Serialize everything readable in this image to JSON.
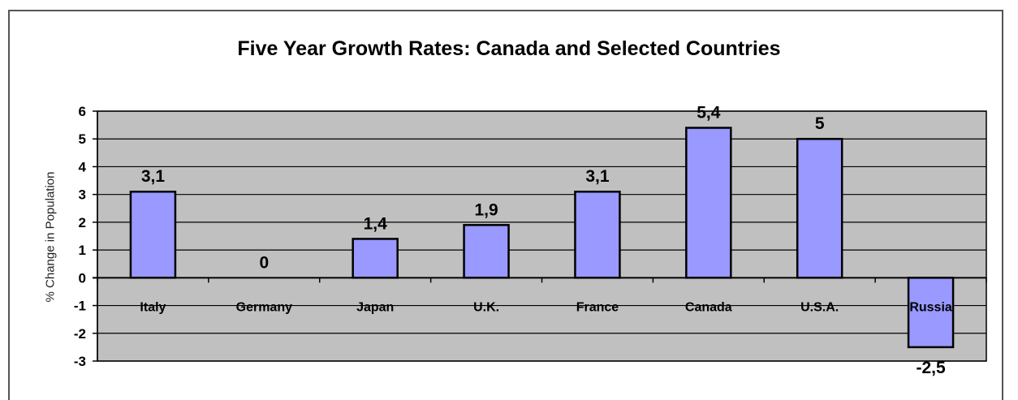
{
  "chart_data": {
    "type": "bar",
    "title": "Five Year Growth Rates: Canada and Selected Countries",
    "ylabel": "% Change in Population",
    "xlabel": "",
    "categories": [
      "Italy",
      "Germany",
      "Japan",
      "U.K.",
      "France",
      "Canada",
      "U.S.A.",
      "Russia"
    ],
    "values": [
      3.1,
      0,
      1.4,
      1.9,
      3.1,
      5.4,
      5,
      -2.5
    ],
    "data_labels": [
      "3,1",
      "0",
      "1,4",
      "1,9",
      "3,1",
      "5,4",
      "5",
      "-2,5"
    ],
    "ylim": [
      -3,
      6
    ],
    "yticks": [
      6,
      5,
      4,
      3,
      2,
      1,
      0,
      -1,
      -2,
      -3
    ],
    "grid": true,
    "legend": "none",
    "colors": {
      "bar_fill": "#9999ff",
      "bar_stroke": "#000000",
      "plot_background": "#c0c0c0",
      "gridline": "#000000"
    }
  }
}
